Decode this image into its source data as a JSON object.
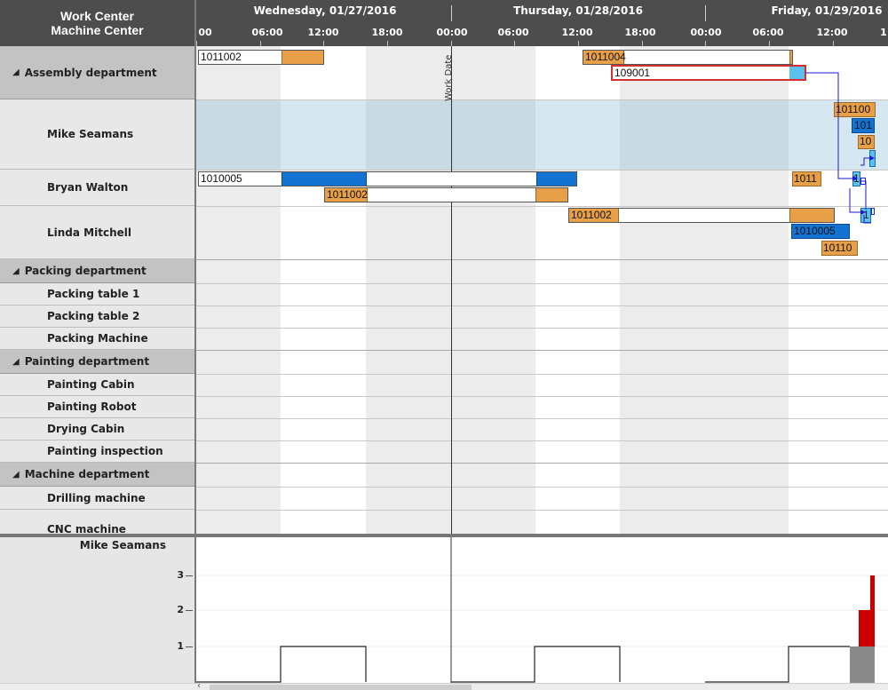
{
  "header": {
    "col1": "Work Center",
    "col2": "Machine Center",
    "days": [
      "Wednesday, 01/27/2016",
      "Thursday, 01/28/2016",
      "Friday, 01/29/2016"
    ],
    "ticks": [
      "00",
      "06:00",
      "12:00",
      "18:00",
      "00:00",
      "06:00",
      "12:00",
      "18:00",
      "00:00",
      "06:00",
      "12:00",
      "1"
    ]
  },
  "tree": {
    "rows": [
      {
        "label": "Assembly department",
        "type": "group"
      },
      {
        "label": "Mike Seamans",
        "type": "res"
      },
      {
        "label": "Bryan Walton",
        "type": "res"
      },
      {
        "label": "Linda Mitchell",
        "type": "res"
      },
      {
        "label": "Packing department",
        "type": "group"
      },
      {
        "label": "Packing table 1",
        "type": "res"
      },
      {
        "label": "Packing table 2",
        "type": "res"
      },
      {
        "label": "Packing Machine",
        "type": "res"
      },
      {
        "label": "Painting department",
        "type": "group"
      },
      {
        "label": "Painting Cabin",
        "type": "res"
      },
      {
        "label": "Painting Robot",
        "type": "res"
      },
      {
        "label": "Drying Cabin",
        "type": "res"
      },
      {
        "label": "Painting inspection",
        "type": "res"
      },
      {
        "label": "Machine department",
        "type": "group"
      },
      {
        "label": "Drilling machine",
        "type": "res"
      },
      {
        "label": "CNC machine",
        "type": "res"
      }
    ],
    "group_marker": "◢"
  },
  "gantt": {
    "work_date_label": "Work Date",
    "bars": {
      "b1": "1011002",
      "b2": "1011004",
      "b3": "109001",
      "b4": "101100",
      "b5": "101",
      "b6": "10",
      "b7": "1010005",
      "b8": "1011002",
      "b9": "1011",
      "b10": "1",
      "b11": "1011002",
      "b12": "1",
      "b13": "1010005",
      "b14": "10110"
    }
  },
  "histogram": {
    "resource": "Mike Seamans",
    "y_ticks": [
      "3",
      "2",
      "1"
    ]
  },
  "colors": {
    "orange": "#e8a048",
    "blue": "#1373d3",
    "light_blue": "#5cc0ee",
    "overload": "#cc0000",
    "critical_border": "#d32f2f"
  }
}
